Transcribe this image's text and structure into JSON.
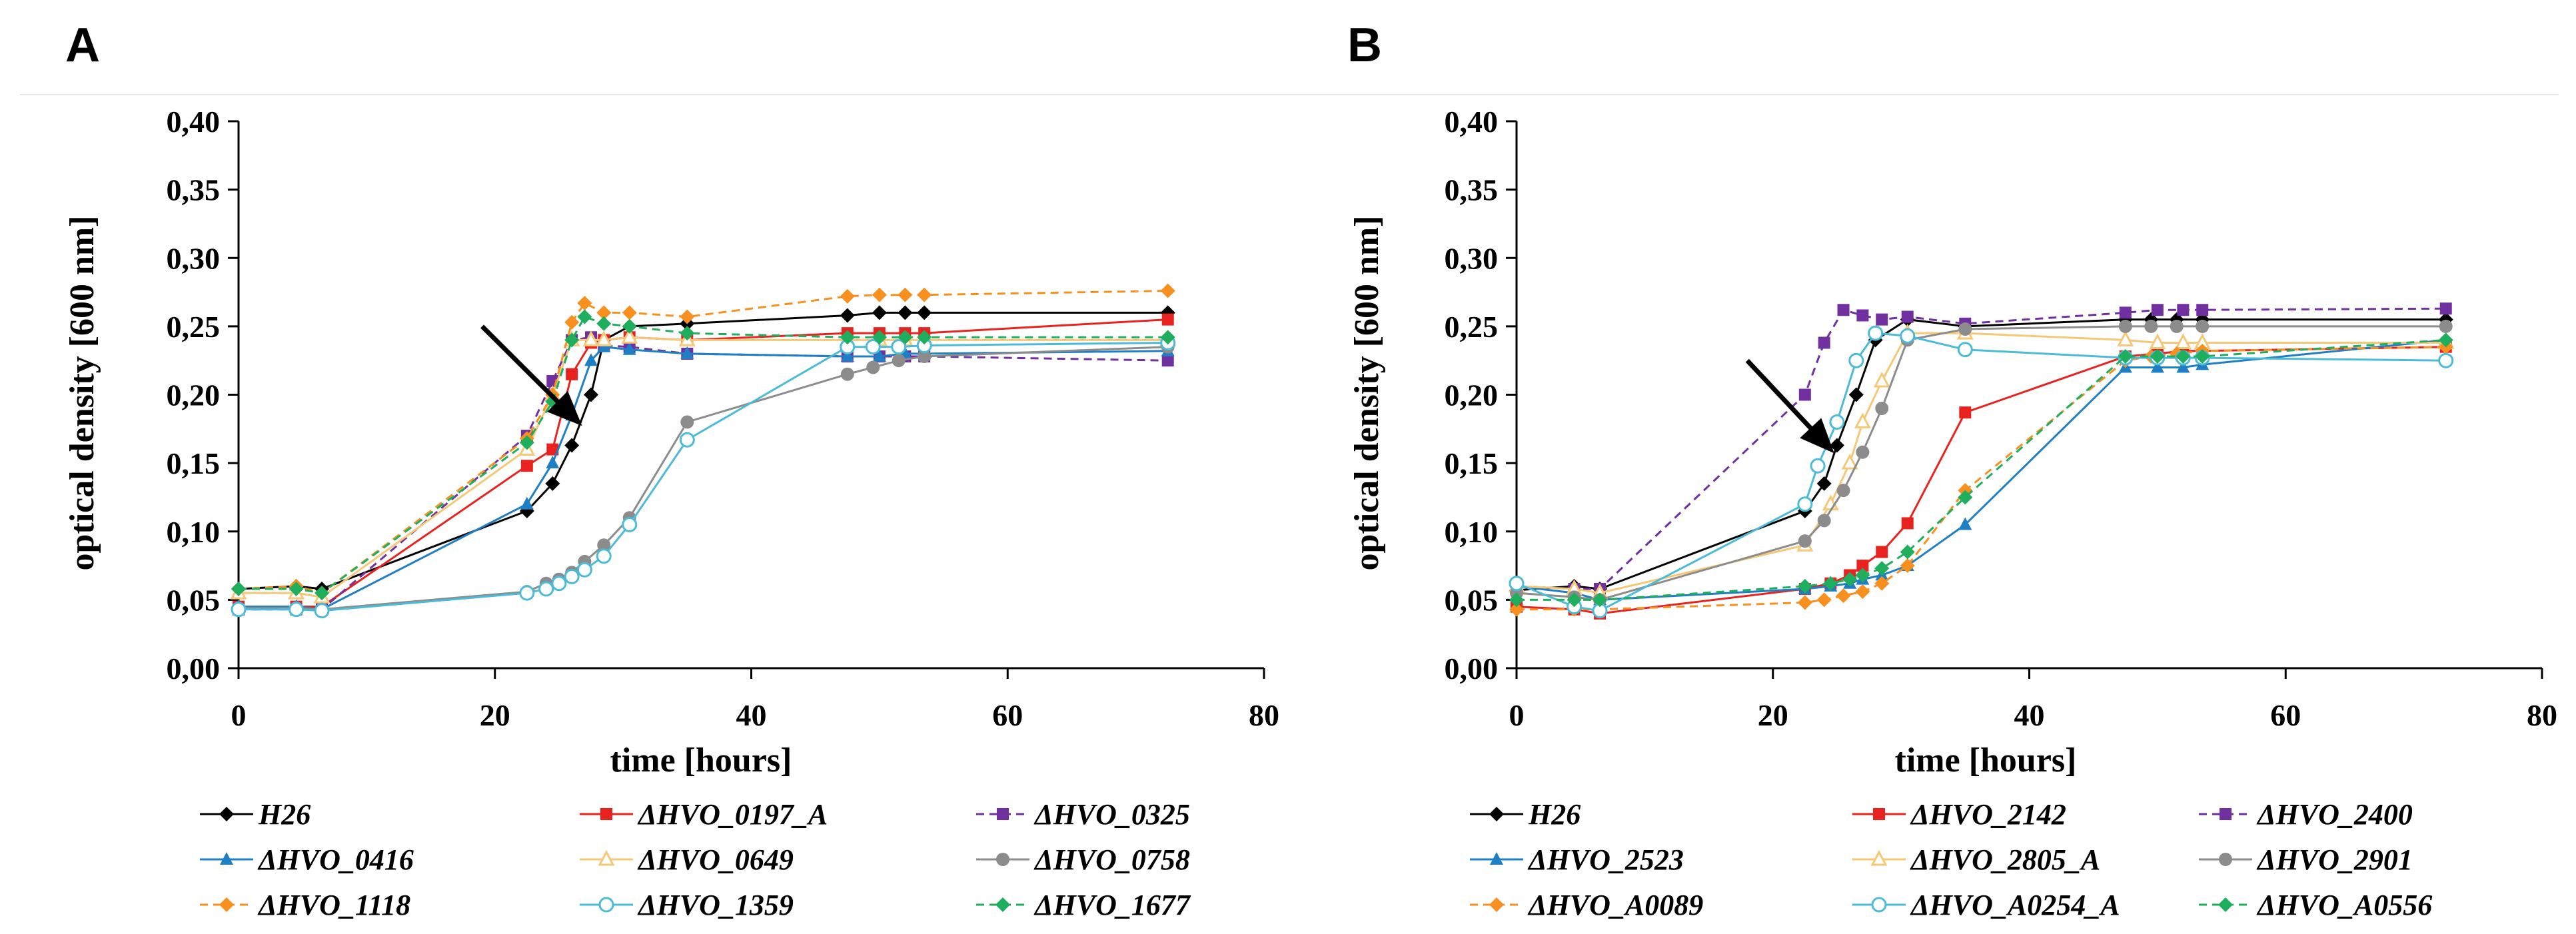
{
  "panels": [
    "A",
    "B"
  ],
  "chart_data": [
    {
      "type": "line",
      "panel": "A",
      "title": "",
      "xlabel": "time [hours]",
      "ylabel": "optical density [600 nm]",
      "xlim": [
        0,
        80
      ],
      "ylim": [
        0,
        0.4
      ],
      "xticks": [
        "0",
        "20",
        "40",
        "60",
        "80"
      ],
      "yticks": [
        "0,00",
        "0,05",
        "0,10",
        "0,15",
        "0,20",
        "0,25",
        "0,30",
        "0,35",
        "0,40"
      ],
      "grid": false,
      "legend_position": "bottom",
      "arrow_annotation": {
        "from": [
          19,
          0.25
        ],
        "to": [
          26.5,
          0.18
        ]
      },
      "series": [
        {
          "name": "H26",
          "color": "#000000",
          "marker": "diamond",
          "dashed": false,
          "x": [
            0,
            4.5,
            6.5,
            22.5,
            24.5,
            26,
            27.5,
            28.5,
            30.5,
            35,
            47.5,
            50,
            52,
            53.5,
            72.5
          ],
          "y": [
            0.058,
            0.06,
            0.058,
            0.115,
            0.135,
            0.163,
            0.2,
            0.24,
            0.25,
            0.252,
            0.258,
            0.26,
            0.26,
            0.26,
            0.26
          ]
        },
        {
          "name": "ΔHVO_0197_A",
          "color": "#e8231f",
          "marker": "square",
          "dashed": false,
          "x": [
            0,
            4.5,
            6.5,
            22.5,
            24.5,
            26,
            27.5,
            28.5,
            30.5,
            35,
            47.5,
            50,
            52,
            53.5,
            72.5
          ],
          "y": [
            0.045,
            0.045,
            0.045,
            0.148,
            0.16,
            0.215,
            0.238,
            0.24,
            0.242,
            0.24,
            0.245,
            0.245,
            0.245,
            0.245,
            0.255
          ]
        },
        {
          "name": "ΔHVO_0325",
          "color": "#7030a0",
          "marker": "square",
          "dashed": true,
          "x": [
            0,
            4.5,
            6.5,
            22.5,
            24.5,
            26,
            27.5,
            28.5,
            30.5,
            35,
            47.5,
            50,
            52,
            53.5,
            72.5
          ],
          "y": [
            0.043,
            0.043,
            0.043,
            0.17,
            0.21,
            0.24,
            0.242,
            0.236,
            0.235,
            0.23,
            0.228,
            0.228,
            0.228,
            0.228,
            0.225
          ]
        },
        {
          "name": "ΔHVO_0416",
          "color": "#1f7fc4",
          "marker": "triangle",
          "dashed": false,
          "x": [
            0,
            4.5,
            6.5,
            22.5,
            24.5,
            26,
            27.5,
            28.5,
            30.5,
            35,
            47.5,
            50,
            52,
            53.5,
            72.5
          ],
          "y": [
            0.045,
            0.045,
            0.043,
            0.12,
            0.15,
            0.185,
            0.225,
            0.235,
            0.233,
            0.23,
            0.228,
            0.228,
            0.23,
            0.23,
            0.232
          ]
        },
        {
          "name": "ΔHVO_0649",
          "color": "#f5c878",
          "marker": "triangle-open",
          "dashed": false,
          "x": [
            0,
            4.5,
            6.5,
            22.5,
            24.5,
            26,
            27.5,
            28.5,
            30.5,
            35,
            47.5,
            50,
            52,
            53.5,
            72.5
          ],
          "y": [
            0.055,
            0.055,
            0.052,
            0.16,
            0.2,
            0.24,
            0.24,
            0.24,
            0.242,
            0.24,
            0.24,
            0.24,
            0.24,
            0.24,
            0.24
          ]
        },
        {
          "name": "ΔHVO_0758",
          "color": "#8c8c8c",
          "marker": "circle",
          "dashed": false,
          "x": [
            0,
            4.5,
            6.5,
            22.5,
            24,
            25,
            26,
            27,
            28.5,
            30.5,
            35,
            47.5,
            49.5,
            51.5,
            53.5,
            72.5
          ],
          "y": [
            0.044,
            0.044,
            0.043,
            0.056,
            0.062,
            0.065,
            0.07,
            0.078,
            0.09,
            0.11,
            0.18,
            0.215,
            0.22,
            0.225,
            0.228,
            0.235
          ]
        },
        {
          "name": "ΔHVO_1118",
          "color": "#f7901e",
          "marker": "diamond",
          "dashed": true,
          "x": [
            0,
            4.5,
            6.5,
            22.5,
            24.5,
            26,
            27,
            28.5,
            30.5,
            35,
            47.5,
            50,
            52,
            53.5,
            72.5
          ],
          "y": [
            0.058,
            0.06,
            0.055,
            0.168,
            0.2,
            0.253,
            0.267,
            0.26,
            0.26,
            0.257,
            0.272,
            0.273,
            0.273,
            0.273,
            0.276
          ]
        },
        {
          "name": "ΔHVO_1359",
          "color": "#4bbbd8",
          "marker": "circle-open",
          "dashed": false,
          "x": [
            0,
            4.5,
            6.5,
            22.5,
            24,
            25,
            26,
            27,
            28.5,
            30.5,
            35,
            47.5,
            49.5,
            51.5,
            53.5,
            72.5
          ],
          "y": [
            0.043,
            0.043,
            0.042,
            0.055,
            0.058,
            0.062,
            0.067,
            0.072,
            0.082,
            0.105,
            0.167,
            0.235,
            0.235,
            0.235,
            0.236,
            0.238
          ]
        },
        {
          "name": "ΔHVO_1677",
          "color": "#1fae5e",
          "marker": "diamond",
          "dashed": true,
          "x": [
            0,
            4.5,
            6.5,
            22.5,
            24.5,
            26,
            27,
            28.5,
            30.5,
            35,
            47.5,
            50,
            52,
            53.5,
            72.5
          ],
          "y": [
            0.058,
            0.058,
            0.055,
            0.165,
            0.195,
            0.24,
            0.257,
            0.252,
            0.25,
            0.245,
            0.242,
            0.242,
            0.242,
            0.242,
            0.242
          ]
        }
      ]
    },
    {
      "type": "line",
      "panel": "B",
      "title": "",
      "xlabel": "time [hours]",
      "ylabel": "optical density [600 nm]",
      "xlim": [
        0,
        80
      ],
      "ylim": [
        0,
        0.4
      ],
      "xticks": [
        "0",
        "20",
        "40",
        "60",
        "80"
      ],
      "yticks": [
        "0,00",
        "0,05",
        "0,10",
        "0,15",
        "0,20",
        "0,25",
        "0,30",
        "0,35",
        "0,40"
      ],
      "grid": false,
      "legend_position": "bottom",
      "arrow_annotation": {
        "from": [
          18,
          0.225
        ],
        "to": [
          24.5,
          0.16
        ]
      },
      "series": [
        {
          "name": "H26",
          "color": "#000000",
          "marker": "diamond",
          "dashed": false,
          "x": [
            0,
            4.5,
            6.5,
            22.5,
            24,
            25,
            26.5,
            28,
            30.5,
            35,
            47.5,
            49.5,
            51.5,
            53.5,
            72.5
          ],
          "y": [
            0.057,
            0.06,
            0.058,
            0.115,
            0.135,
            0.163,
            0.2,
            0.24,
            0.255,
            0.25,
            0.255,
            0.255,
            0.255,
            0.255,
            0.255
          ]
        },
        {
          "name": "ΔHVO_2142",
          "color": "#e8231f",
          "marker": "square",
          "dashed": false,
          "x": [
            0,
            4.5,
            6.5,
            22.5,
            24.5,
            26,
            27,
            28.5,
            30.5,
            35,
            47.5,
            50,
            52,
            53.5,
            72.5
          ],
          "y": [
            0.045,
            0.043,
            0.04,
            0.058,
            0.062,
            0.068,
            0.075,
            0.085,
            0.106,
            0.187,
            0.228,
            0.23,
            0.232,
            0.232,
            0.235
          ]
        },
        {
          "name": "ΔHVO_2400",
          "color": "#7030a0",
          "marker": "square",
          "dashed": true,
          "x": [
            0,
            4.5,
            6.5,
            22.5,
            24,
            25.5,
            27,
            28.5,
            30.5,
            35,
            47.5,
            50,
            52,
            53.5,
            72.5
          ],
          "y": [
            0.06,
            0.058,
            0.058,
            0.2,
            0.238,
            0.262,
            0.258,
            0.255,
            0.257,
            0.252,
            0.26,
            0.262,
            0.262,
            0.262,
            0.263
          ]
        },
        {
          "name": "ΔHVO_2523",
          "color": "#1f7fc4",
          "marker": "triangle",
          "dashed": false,
          "x": [
            0,
            4.5,
            6.5,
            22.5,
            24.5,
            26,
            27,
            28.5,
            30.5,
            35,
            47.5,
            50,
            52,
            53.5,
            72.5
          ],
          "y": [
            0.06,
            0.055,
            0.05,
            0.058,
            0.06,
            0.062,
            0.065,
            0.068,
            0.075,
            0.105,
            0.22,
            0.22,
            0.22,
            0.222,
            0.24
          ]
        },
        {
          "name": "ΔHVO_2805_A",
          "color": "#f5c878",
          "marker": "triangle-open",
          "dashed": false,
          "x": [
            0,
            4.5,
            6.5,
            22.5,
            24.5,
            26,
            27,
            28.5,
            30.5,
            35,
            47.5,
            50,
            52,
            53.5,
            72.5
          ],
          "y": [
            0.06,
            0.058,
            0.055,
            0.09,
            0.12,
            0.15,
            0.18,
            0.21,
            0.245,
            0.245,
            0.24,
            0.238,
            0.238,
            0.238,
            0.238
          ]
        },
        {
          "name": "ΔHVO_2901",
          "color": "#8c8c8c",
          "marker": "circle",
          "dashed": false,
          "x": [
            0,
            4.5,
            6.5,
            22.5,
            24,
            25.5,
            27,
            28.5,
            30.5,
            35,
            47.5,
            49.5,
            51.5,
            53.5,
            72.5
          ],
          "y": [
            0.055,
            0.052,
            0.05,
            0.093,
            0.108,
            0.13,
            0.158,
            0.19,
            0.24,
            0.248,
            0.25,
            0.25,
            0.25,
            0.25,
            0.25
          ]
        },
        {
          "name": "ΔHVO_A0089",
          "color": "#f7901e",
          "marker": "diamond",
          "dashed": true,
          "x": [
            0,
            4.5,
            6.5,
            22.5,
            24,
            25.5,
            27,
            28.5,
            30.5,
            35,
            47.5,
            49.5,
            51.5,
            53.5,
            72.5
          ],
          "y": [
            0.043,
            0.043,
            0.043,
            0.048,
            0.05,
            0.053,
            0.056,
            0.062,
            0.075,
            0.13,
            0.225,
            0.228,
            0.23,
            0.232,
            0.235
          ]
        },
        {
          "name": "ΔHVO_A0254_A",
          "color": "#4bbbd8",
          "marker": "circle-open",
          "dashed": false,
          "x": [
            0,
            4.5,
            6.5,
            22.5,
            23.5,
            25,
            26.5,
            28,
            30.5,
            35,
            47.5,
            50,
            52,
            53.5,
            72.5
          ],
          "y": [
            0.062,
            0.045,
            0.042,
            0.12,
            0.148,
            0.18,
            0.225,
            0.245,
            0.243,
            0.233,
            0.227,
            0.227,
            0.227,
            0.227,
            0.225
          ]
        },
        {
          "name": "ΔHVO_A0556",
          "color": "#1fae5e",
          "marker": "diamond",
          "dashed": true,
          "x": [
            0,
            4.5,
            6.5,
            22.5,
            24.5,
            26,
            27,
            28.5,
            30.5,
            35,
            47.5,
            50,
            52,
            53.5,
            72.5
          ],
          "y": [
            0.05,
            0.05,
            0.05,
            0.06,
            0.062,
            0.065,
            0.068,
            0.073,
            0.085,
            0.125,
            0.228,
            0.228,
            0.228,
            0.228,
            0.24
          ]
        }
      ]
    }
  ]
}
